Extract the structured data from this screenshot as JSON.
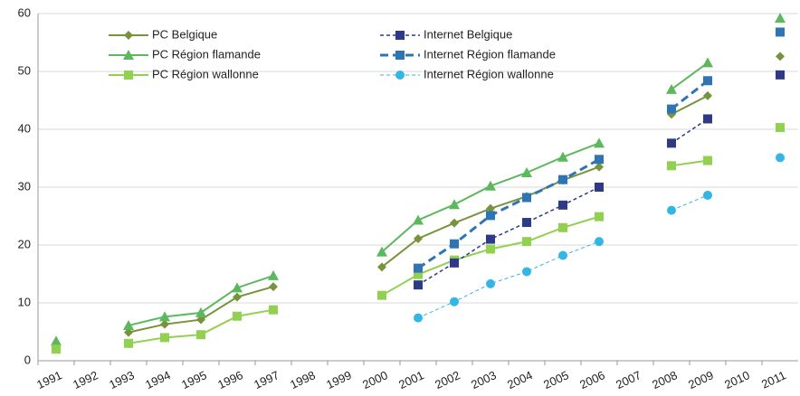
{
  "chart_data": {
    "type": "line",
    "categories": [
      "1991",
      "1992",
      "1993",
      "1994",
      "1995",
      "1996",
      "1997",
      "1998",
      "1999",
      "2000",
      "2001",
      "2002",
      "2003",
      "2004",
      "2005",
      "2006",
      "2007",
      "2008",
      "2009",
      "2010",
      "2011"
    ],
    "ylim": [
      0,
      60
    ],
    "yticks": [
      0,
      10,
      20,
      30,
      40,
      50,
      60
    ],
    "grid": true,
    "legend": "top",
    "series": [
      {
        "name": "PC Belgique",
        "color": "#77933c",
        "marker": "diamond",
        "dash": "solid",
        "width": 2,
        "values": [
          null,
          null,
          4.9,
          6.3,
          7.1,
          11,
          12.8,
          null,
          null,
          16.2,
          21.1,
          23.8,
          26.3,
          28.4,
          31.2,
          33.5,
          null,
          42.6,
          45.8,
          null,
          52.6
        ]
      },
      {
        "name": "PC Région flamande",
        "color": "#5cb85c",
        "marker": "triangle",
        "dash": "solid",
        "width": 2,
        "values": [
          3.4,
          null,
          6.1,
          7.6,
          8.3,
          12.6,
          14.7,
          null,
          null,
          18.8,
          24.3,
          27,
          30.2,
          32.5,
          35.2,
          37.6,
          null,
          46.9,
          51.5,
          null,
          59.2
        ]
      },
      {
        "name": "PC Région wallonne",
        "color": "#92d050",
        "marker": "square",
        "dash": "solid",
        "width": 2,
        "values": [
          2,
          null,
          3,
          4,
          4.5,
          7.7,
          8.8,
          null,
          null,
          11.3,
          14.9,
          17.4,
          19.3,
          20.6,
          23,
          24.9,
          null,
          33.7,
          34.6,
          null,
          40.3
        ]
      },
      {
        "name": "Internet Belgique",
        "color": "#2e3a87",
        "marker": "square",
        "dash": "dashed",
        "width": 1.5,
        "values": [
          null,
          null,
          null,
          null,
          null,
          null,
          null,
          null,
          null,
          null,
          13.1,
          16.9,
          21,
          23.9,
          26.9,
          30,
          null,
          37.6,
          41.8,
          null,
          49.4
        ]
      },
      {
        "name": "Internet Région flamande",
        "color": "#2e75b6",
        "marker": "square",
        "dash": "dashed",
        "width": 3,
        "values": [
          null,
          null,
          null,
          null,
          null,
          null,
          null,
          null,
          null,
          null,
          16,
          20.2,
          25.1,
          28.2,
          31.3,
          34.8,
          null,
          43.5,
          48.4,
          null,
          56.8
        ]
      },
      {
        "name": "Internet Région wallonne",
        "color": "#33b5e5",
        "marker": "circle",
        "dash": "dashed",
        "width": 1,
        "values": [
          null,
          null,
          null,
          null,
          null,
          null,
          null,
          null,
          null,
          null,
          7.4,
          10.2,
          13.3,
          15.4,
          18.2,
          20.6,
          null,
          26,
          28.6,
          null,
          35.1
        ]
      }
    ]
  }
}
